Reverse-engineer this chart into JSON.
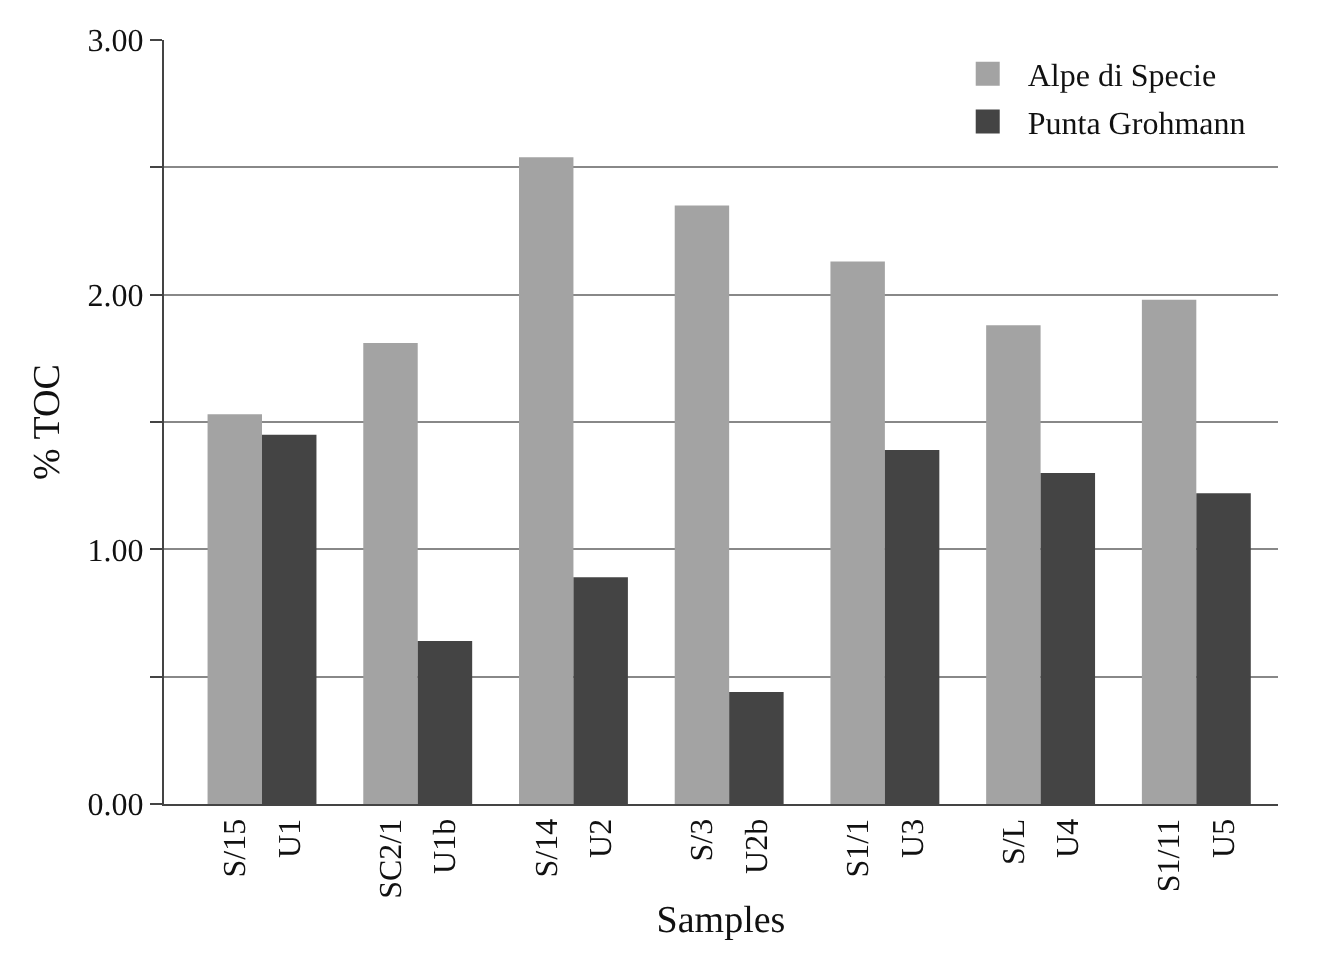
{
  "chart_data": {
    "type": "bar",
    "xlabel": "Samples",
    "ylabel": "% TOC",
    "categories": [
      "S/15",
      "U1",
      "SC2/1",
      "U1b",
      "S/14",
      "U2",
      "S/3",
      "U2b",
      "S1/1",
      "U3",
      "S/L",
      "U4",
      "S1/11",
      "U5"
    ],
    "series": [
      {
        "name": "Alpe di Specie",
        "color": "#a3a3a3",
        "values": [
          1.53,
          null,
          1.81,
          null,
          2.54,
          null,
          2.35,
          null,
          2.13,
          null,
          1.88,
          null,
          1.98,
          null
        ]
      },
      {
        "name": "Punta Grohmann",
        "color": "#444444",
        "values": [
          null,
          1.45,
          null,
          0.64,
          null,
          0.89,
          null,
          0.44,
          null,
          1.39,
          null,
          1.3,
          null,
          1.22
        ]
      }
    ],
    "ylim": [
      0,
      3
    ],
    "yticks": [
      {
        "value": 0,
        "label": "0.00"
      },
      {
        "value": 0.5,
        "label": null
      },
      {
        "value": 1,
        "label": "1.00"
      },
      {
        "value": 1.5,
        "label": null
      },
      {
        "value": 2,
        "label": "2.00"
      },
      {
        "value": 2.5,
        "label": null
      },
      {
        "value": 3,
        "label": "3.00"
      }
    ],
    "grid": "y",
    "legend": "top right"
  }
}
